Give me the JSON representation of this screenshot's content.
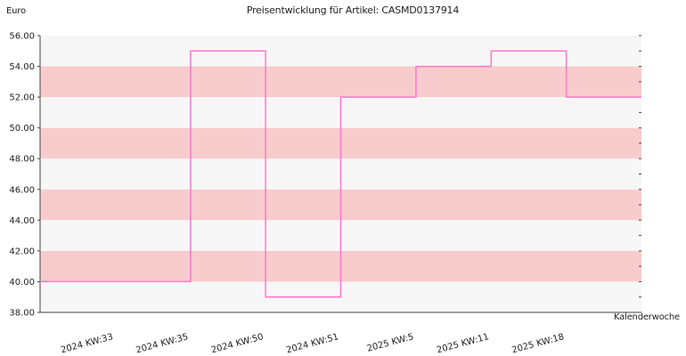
{
  "chart_data": {
    "type": "line",
    "step": true,
    "title": "Preisentwicklung für Artikel: CASMD0137914",
    "ylabel": "Euro",
    "xlabel": "Kalenderwoche",
    "ylim": [
      38,
      56
    ],
    "yticks": [
      "38.00",
      "40.00",
      "42.00",
      "44.00",
      "46.00",
      "48.00",
      "50.00",
      "52.00",
      "54.00",
      "56.00"
    ],
    "x_tick_labels": [
      "2024 KW:33",
      "2024 KW:35",
      "2024 KW:50",
      "2024 KW:51",
      "2025 KW:5",
      "2025 KW:11",
      "2025 KW:18"
    ],
    "series": [
      {
        "color": "#ff77cc",
        "values": [
          40.0,
          40.0,
          55.0,
          39.0,
          52.0,
          54.0,
          55.0,
          52.0
        ]
      }
    ],
    "band_colors": [
      "#f7f7f7",
      "#f8cccc"
    ],
    "grid": false
  }
}
